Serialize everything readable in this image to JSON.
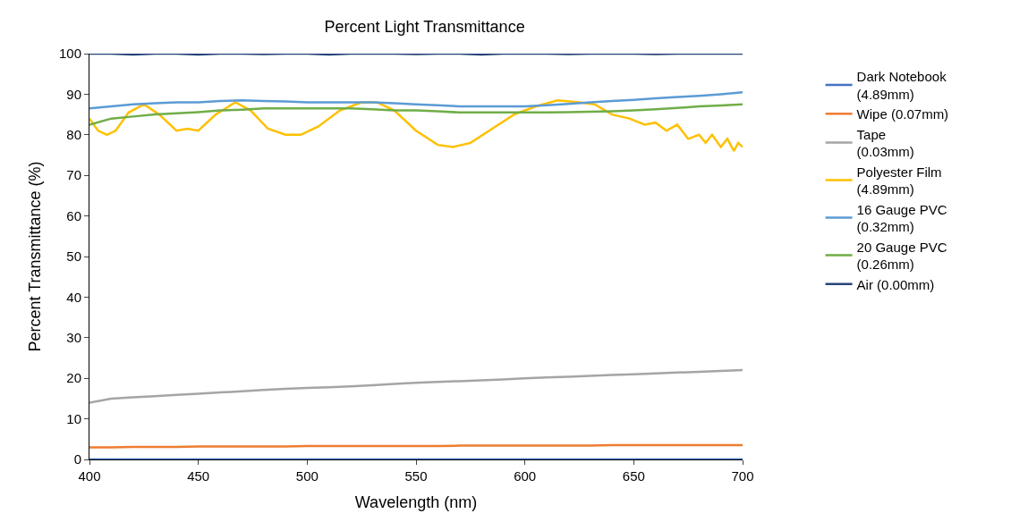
{
  "chart_data": {
    "type": "line",
    "title": "Percent Light Transmittance",
    "xlabel": "Wavelength (nm)",
    "ylabel": "Percent Transmittance (%)",
    "x": [
      400,
      410,
      420,
      430,
      440,
      450,
      460,
      470,
      480,
      490,
      500,
      510,
      520,
      530,
      540,
      550,
      560,
      570,
      580,
      590,
      600,
      610,
      620,
      630,
      640,
      650,
      660,
      670,
      680,
      690,
      700
    ],
    "xlim": [
      400,
      700
    ],
    "xticks": [
      400,
      450,
      500,
      550,
      600,
      650,
      700
    ],
    "ylim": [
      0,
      100
    ],
    "yticks": [
      0,
      10,
      20,
      30,
      40,
      50,
      60,
      70,
      80,
      90,
      100
    ],
    "legend": "right",
    "line_style": "solid",
    "marker": "none",
    "series": [
      {
        "name": "Dark Notebook (4.89mm)",
        "color": "#4472c4",
        "values": [
          0,
          0,
          0,
          0,
          0,
          0,
          0,
          0,
          0,
          0,
          0,
          0,
          0,
          0,
          0,
          0,
          0,
          0,
          0,
          0,
          0,
          0,
          0,
          0,
          0,
          0,
          0,
          0,
          0,
          0,
          0
        ]
      },
      {
        "name": "Wipe (0.07mm)",
        "color": "#ed7d31",
        "values": [
          3,
          3,
          3.1,
          3.1,
          3.1,
          3.2,
          3.2,
          3.2,
          3.2,
          3.2,
          3.3,
          3.3,
          3.3,
          3.3,
          3.3,
          3.3,
          3.3,
          3.4,
          3.4,
          3.4,
          3.4,
          3.4,
          3.4,
          3.4,
          3.5,
          3.5,
          3.5,
          3.5,
          3.5,
          3.5,
          3.5
        ]
      },
      {
        "name": "Tape(0.03mm)",
        "color": "#a5a5a5",
        "values": [
          14,
          15,
          15.3,
          15.6,
          15.9,
          16.2,
          16.5,
          16.8,
          17.1,
          17.4,
          17.6,
          17.8,
          18,
          18.3,
          18.6,
          18.9,
          19.1,
          19.3,
          19.5,
          19.7,
          20,
          20.2,
          20.4,
          20.6,
          20.8,
          21,
          21.2,
          21.4,
          21.6,
          21.8,
          22
        ]
      },
      {
        "name": "Polyester Film (4.89mm)",
        "color": "#ffc000",
        "x": [
          400,
          404,
          408,
          412,
          418,
          425,
          432,
          440,
          445,
          450,
          458,
          467,
          474,
          482,
          490,
          497,
          505,
          515,
          525,
          532,
          540,
          550,
          560,
          567,
          575,
          585,
          595,
          605,
          615,
          625,
          632,
          640,
          648,
          655,
          660,
          665,
          670,
          675,
          680,
          683,
          686,
          690,
          693,
          696,
          698,
          700
        ],
        "values": [
          84,
          81,
          80,
          81,
          85.5,
          87.5,
          85,
          81,
          81.5,
          81,
          85,
          88,
          86,
          81.5,
          80,
          80,
          82,
          86,
          88,
          88,
          86,
          81,
          77.5,
          77,
          78,
          81.5,
          85,
          87,
          88.5,
          88,
          87.5,
          85,
          84,
          82.5,
          83,
          81,
          82.5,
          79,
          80,
          78,
          80,
          77,
          79,
          76,
          78,
          77
        ]
      },
      {
        "name": "16 Gauge PVC (0.32mm)",
        "color": "#5b9bd5",
        "values": [
          86.5,
          87,
          87.5,
          87.8,
          88,
          88,
          88.3,
          88.5,
          88.3,
          88.2,
          88,
          88,
          88,
          88,
          87.8,
          87.5,
          87.3,
          87,
          87,
          87,
          87,
          87.3,
          87.6,
          88,
          88.3,
          88.6,
          89,
          89.3,
          89.6,
          90,
          90.5
        ]
      },
      {
        "name": "20 Gauge PVC (0.26mm)",
        "color": "#70ad47",
        "values": [
          82.5,
          84,
          84.5,
          85,
          85.3,
          85.6,
          86,
          86.2,
          86.5,
          86.5,
          86.5,
          86.5,
          86.5,
          86.3,
          86,
          86,
          85.8,
          85.5,
          85.5,
          85.5,
          85.5,
          85.5,
          85.6,
          85.7,
          85.8,
          86,
          86.3,
          86.6,
          87,
          87.2,
          87.5
        ]
      },
      {
        "name": "Air (0.00mm)",
        "color": "#264478",
        "values": [
          100,
          100,
          99.8,
          100,
          100,
          99.8,
          100,
          100,
          99.9,
          100,
          100,
          99.8,
          100,
          100,
          100,
          99.9,
          100,
          100,
          99.8,
          100,
          100,
          100,
          99.9,
          100,
          100,
          100,
          99.9,
          100,
          100,
          100,
          100
        ]
      }
    ]
  }
}
